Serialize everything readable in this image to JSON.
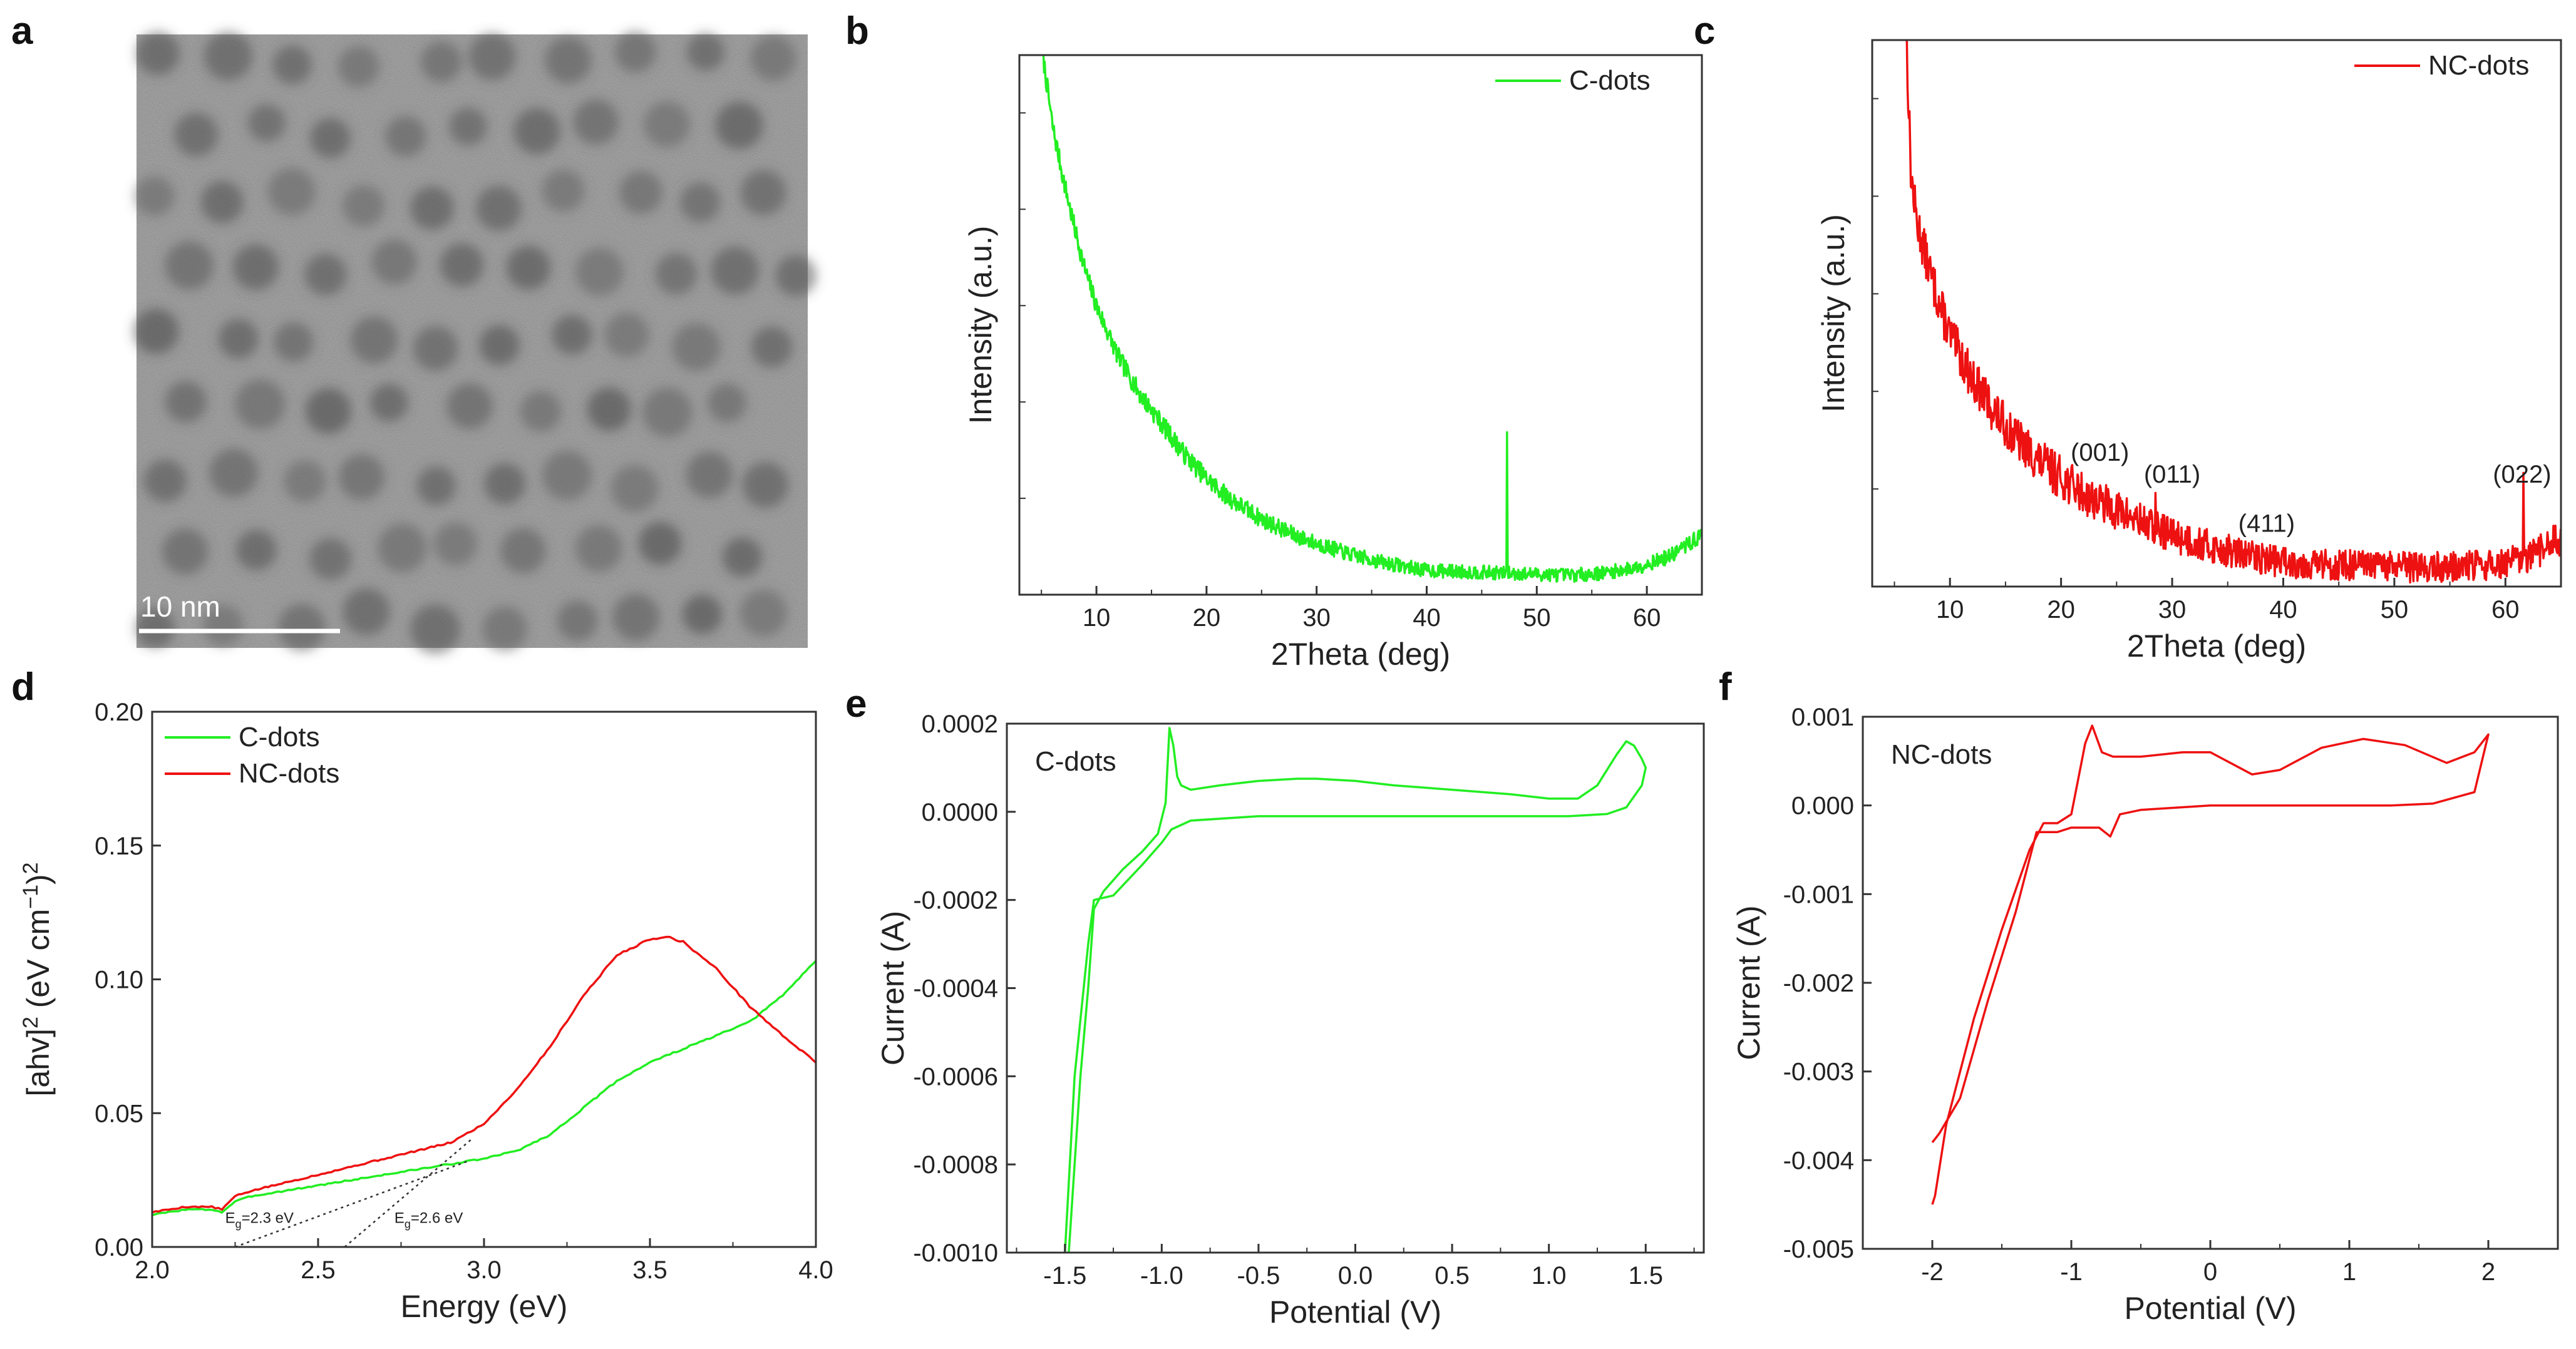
{
  "figure": {
    "panel_labels": [
      "a",
      "b",
      "c",
      "d",
      "e",
      "f"
    ],
    "tem": {
      "scale_bar_label": "10 nm"
    }
  },
  "colors": {
    "cdots": "#22ee22",
    "ncdots": "#ee1111"
  },
  "chart_data": [
    {
      "panel": "b",
      "type": "line",
      "xlabel": "2Theta (deg)",
      "ylabel": "Intensity (a.u.)",
      "xlim": [
        3,
        65
      ],
      "ylim": [
        0,
        1
      ],
      "xticks": [
        10,
        20,
        30,
        40,
        50,
        60
      ],
      "legend": [
        {
          "name": "C-dots",
          "color": "#22ee22"
        }
      ],
      "legend_position": "top-right",
      "series": [
        {
          "name": "C-dots",
          "color": "#22ee22",
          "noise": 0.018,
          "seed": 7,
          "step": 0.06,
          "x": [
            5,
            6,
            7,
            8,
            9,
            10,
            12,
            14,
            16,
            18,
            20,
            22,
            25,
            28,
            30,
            33,
            36,
            40,
            44,
            47,
            50,
            53,
            56,
            59,
            62,
            65
          ],
          "y": [
            1.02,
            0.87,
            0.77,
            0.68,
            0.6,
            0.535,
            0.44,
            0.37,
            0.315,
            0.26,
            0.215,
            0.18,
            0.14,
            0.11,
            0.095,
            0.075,
            0.06,
            0.045,
            0.042,
            0.04,
            0.038,
            0.036,
            0.04,
            0.05,
            0.07,
            0.11
          ],
          "spikes": [
            {
              "x": 47.3,
              "h": 0.27
            }
          ]
        }
      ]
    },
    {
      "panel": "c",
      "type": "line",
      "xlabel": "2Theta (deg)",
      "ylabel": "Intensity (a.u.)",
      "xlim": [
        3,
        65
      ],
      "ylim": [
        0,
        1
      ],
      "xticks": [
        10,
        20,
        30,
        40,
        50,
        60
      ],
      "legend": [
        {
          "name": "NC-dots",
          "color": "#ee1111"
        }
      ],
      "legend_position": "top-right",
      "annotations": [
        {
          "text": "(001)",
          "x": 23.5,
          "y": 0.23
        },
        {
          "text": "(011)",
          "x": 30.0,
          "y": 0.19
        },
        {
          "text": "(411)",
          "x": 38.5,
          "y": 0.1
        },
        {
          "text": "(022)",
          "x": 61.5,
          "y": 0.19
        }
      ],
      "series": [
        {
          "name": "NC-dots",
          "color": "#ee1111",
          "noise": 0.04,
          "seed": 13,
          "step": 0.06,
          "x": [
            6,
            6.5,
            7,
            8,
            9,
            10,
            12,
            14,
            16,
            18,
            20,
            22,
            25,
            28,
            30,
            33,
            36,
            40,
            44,
            47,
            50,
            53,
            56,
            59,
            62,
            65
          ],
          "y": [
            1.05,
            0.75,
            0.67,
            0.59,
            0.52,
            0.46,
            0.38,
            0.32,
            0.27,
            0.23,
            0.2,
            0.17,
            0.14,
            0.11,
            0.095,
            0.075,
            0.06,
            0.045,
            0.04,
            0.038,
            0.036,
            0.035,
            0.036,
            0.04,
            0.05,
            0.09
          ],
          "spikes": [
            {
              "x": 28.5,
              "h": 0.05
            },
            {
              "x": 61.6,
              "h": 0.14
            }
          ]
        }
      ]
    },
    {
      "panel": "d",
      "type": "line",
      "xlabel": "Energy (eV)",
      "ylabel": "[ahv]^2 (eV cm^-1)^2",
      "xlim": [
        2.0,
        4.0
      ],
      "ylim": [
        0.0,
        0.2
      ],
      "xticks": [
        2.0,
        2.5,
        3.0,
        3.5,
        4.0
      ],
      "yticks": [
        0.0,
        0.05,
        0.1,
        0.15,
        0.2
      ],
      "xtick_labels": [
        "2.0",
        "2.5",
        "3.0",
        "3.5",
        "4.0"
      ],
      "ytick_labels": [
        "0.00",
        "0.05",
        "0.10",
        "0.15",
        "0.20"
      ],
      "legend": [
        {
          "name": "C-dots",
          "color": "#22ee22"
        },
        {
          "name": "NC-dots",
          "color": "#ee1111"
        }
      ],
      "legend_position": "top-left",
      "annotations": [
        {
          "text": "Eg=2.3 eV",
          "x": 2.22,
          "y": 0.009
        },
        {
          "text": "Eg=2.6 eV",
          "x": 2.73,
          "y": 0.009
        }
      ],
      "tangent_lines": [
        {
          "x": [
            2.25,
            2.95
          ],
          "y": [
            0.0,
            0.032
          ]
        },
        {
          "x": [
            2.58,
            2.96
          ],
          "y": [
            0.0,
            0.04
          ]
        }
      ],
      "series": [
        {
          "name": "C-dots",
          "color": "#22ee22",
          "noise": 0.0004,
          "seed": 3,
          "step": 0.01,
          "x": [
            2.0,
            2.1,
            2.18,
            2.21,
            2.25,
            2.3,
            2.4,
            2.5,
            2.6,
            2.7,
            2.8,
            2.9,
            3.0,
            3.1,
            3.2,
            3.3,
            3.4,
            3.5,
            3.6,
            3.7,
            3.8,
            3.9,
            4.0
          ],
          "y": [
            0.012,
            0.014,
            0.014,
            0.013,
            0.017,
            0.019,
            0.021,
            0.023,
            0.025,
            0.027,
            0.029,
            0.031,
            0.033,
            0.036,
            0.042,
            0.052,
            0.062,
            0.069,
            0.074,
            0.079,
            0.084,
            0.094,
            0.107
          ]
        },
        {
          "name": "NC-dots",
          "color": "#ee1111",
          "noise": 0.0004,
          "seed": 5,
          "step": 0.01,
          "x": [
            2.0,
            2.1,
            2.18,
            2.21,
            2.25,
            2.3,
            2.4,
            2.5,
            2.6,
            2.7,
            2.8,
            2.9,
            3.0,
            3.1,
            3.2,
            3.3,
            3.4,
            3.5,
            3.55,
            3.6,
            3.7,
            3.8,
            3.9,
            4.0
          ],
          "y": [
            0.013,
            0.015,
            0.015,
            0.014,
            0.019,
            0.021,
            0.024,
            0.027,
            0.03,
            0.033,
            0.036,
            0.039,
            0.046,
            0.059,
            0.075,
            0.094,
            0.109,
            0.115,
            0.116,
            0.114,
            0.104,
            0.09,
            0.079,
            0.069
          ]
        }
      ]
    },
    {
      "panel": "e",
      "type": "line",
      "xlabel": "Potential (V)",
      "ylabel": "Current (A)",
      "xlim": [
        -1.8,
        1.8
      ],
      "ylim": [
        -0.001,
        0.0002
      ],
      "xticks": [
        -1.5,
        -1.0,
        -0.5,
        0.0,
        0.5,
        1.0,
        1.5
      ],
      "yticks": [
        0.0002,
        0.0,
        -0.0002,
        -0.0004,
        -0.0006,
        -0.0008,
        -0.001
      ],
      "xtick_labels": [
        "-1.5",
        "-1.0",
        "-0.5",
        "0.0",
        "0.5",
        "1.0",
        "1.5"
      ],
      "ytick_labels": [
        "0.0002",
        "0.0000",
        "-0.0002",
        "-0.0004",
        "-0.0006",
        "-0.0008",
        "-0.0010"
      ],
      "inset_label": "C-dots",
      "series": [
        {
          "name": "C-dots",
          "color": "#22ee22",
          "noise": 0,
          "seed": 1,
          "step": 0,
          "x": [
            -1.48,
            -1.45,
            -1.42,
            -1.38,
            -1.35,
            -1.3,
            -1.2,
            -1.1,
            -1.02,
            -0.98,
            -0.96,
            -0.94,
            -0.92,
            -0.9,
            -0.85,
            -0.7,
            -0.5,
            -0.3,
            -0.2,
            0.0,
            0.2,
            0.5,
            0.8,
            1.0,
            1.15,
            1.25,
            1.35,
            1.4,
            1.44,
            1.48,
            1.5,
            1.48,
            1.4,
            1.3,
            1.1,
            0.8,
            0.5,
            0.0,
            -0.5,
            -0.85,
            -0.95,
            -1.0,
            -1.1,
            -1.25,
            -1.35,
            -1.38,
            -1.45,
            -1.5
          ],
          "y": [
            -0.001,
            -0.0008,
            -0.0006,
            -0.0004,
            -0.00022,
            -0.00018,
            -0.00013,
            -9e-05,
            -5e-05,
            2e-05,
            0.00019,
            0.00015,
            8e-05,
            6e-05,
            5e-05,
            6e-05,
            7e-05,
            7.5e-05,
            7.5e-05,
            7e-05,
            6e-05,
            5e-05,
            4e-05,
            3e-05,
            3e-05,
            6e-05,
            0.00013,
            0.00016,
            0.00015,
            0.00012,
            0.0001,
            6e-05,
            1e-05,
            -5e-06,
            -1e-05,
            -1e-05,
            -1e-05,
            -1e-05,
            -1e-05,
            -2e-05,
            -4e-05,
            -7e-05,
            -0.00012,
            -0.00019,
            -0.0002,
            -0.0003,
            -0.0006,
            -0.001
          ]
        }
      ]
    },
    {
      "panel": "f",
      "type": "line",
      "xlabel": "Potential (V)",
      "ylabel": "Current (A)",
      "xlim": [
        -2.5,
        2.5
      ],
      "ylim": [
        -0.005,
        0.001
      ],
      "xticks": [
        -2,
        -1,
        0,
        1,
        2
      ],
      "yticks": [
        0.001,
        0.0,
        -0.001,
        -0.002,
        -0.003,
        -0.004,
        -0.005
      ],
      "xtick_labels": [
        "-2",
        "-1",
        "0",
        "1",
        "2"
      ],
      "ytick_labels": [
        "0.001",
        "0.000",
        "-0.001",
        "-0.002",
        "-0.003",
        "-0.004",
        "-0.005"
      ],
      "inset_label": "NC-dots",
      "series": [
        {
          "name": "NC-dots",
          "color": "#ee1111",
          "noise": 0,
          "seed": 1,
          "step": 0,
          "x": [
            -2.0,
            -1.98,
            -1.9,
            -1.7,
            -1.5,
            -1.3,
            -1.2,
            -1.1,
            -1.0,
            -0.95,
            -0.9,
            -0.85,
            -0.78,
            -0.7,
            -0.5,
            -0.2,
            0.0,
            0.3,
            0.5,
            0.8,
            1.1,
            1.4,
            1.7,
            1.9,
            2.0,
            1.9,
            1.6,
            1.3,
            1.0,
            0.5,
            0.0,
            -0.5,
            -0.65,
            -0.72,
            -0.8,
            -1.0,
            -1.1,
            -1.18,
            -1.25,
            -1.4,
            -1.6,
            -1.8,
            -1.95,
            -2.0
          ],
          "y": [
            -0.0045,
            -0.0044,
            -0.0036,
            -0.0024,
            -0.0014,
            -0.0005,
            -0.0002,
            -0.0002,
            -0.0001,
            0.0003,
            0.0007,
            0.0009,
            0.0006,
            0.00055,
            0.00055,
            0.0006,
            0.0006,
            0.00035,
            0.0004,
            0.00065,
            0.00075,
            0.00068,
            0.00048,
            0.0006,
            0.0008,
            0.00015,
            2e-05,
            0.0,
            0.0,
            0.0,
            0.0,
            -5e-05,
            -0.0001,
            -0.00035,
            -0.00025,
            -0.00025,
            -0.0003,
            -0.0003,
            -0.0003,
            -0.0012,
            -0.0022,
            -0.0033,
            -0.0037,
            -0.0038
          ]
        }
      ]
    }
  ]
}
